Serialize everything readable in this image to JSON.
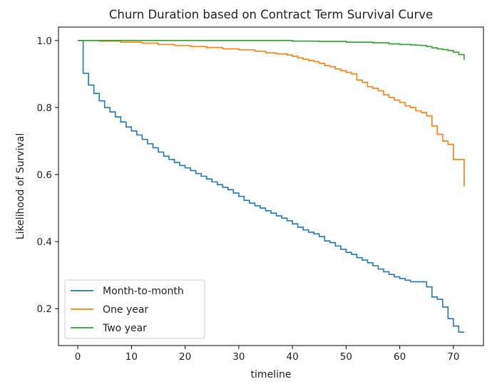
{
  "chart_data": {
    "type": "line",
    "step": true,
    "title": "Churn Duration based on Contract Term Survival Curve",
    "xlabel": "timeline",
    "ylabel": "Likelihood of Survival",
    "xlim": [
      -3.6,
      75.6
    ],
    "ylim": [
      0.09,
      1.04
    ],
    "xticks": [
      0,
      10,
      20,
      30,
      40,
      50,
      60,
      70
    ],
    "yticks": [
      0.2,
      0.4,
      0.6,
      0.8,
      1.0
    ],
    "ytick_labels": [
      "0.2",
      "0.4",
      "0.6",
      "0.8",
      "1.0"
    ],
    "grid": false,
    "legend_position": "lower-left",
    "series": [
      {
        "name": "Month-to-month",
        "color": "#1f77b4",
        "x": [
          0,
          1,
          2,
          3,
          4,
          5,
          6,
          7,
          8,
          9,
          10,
          11,
          12,
          13,
          14,
          15,
          16,
          17,
          18,
          19,
          20,
          21,
          22,
          23,
          24,
          25,
          26,
          27,
          28,
          29,
          30,
          31,
          32,
          33,
          34,
          35,
          36,
          37,
          38,
          39,
          40,
          41,
          42,
          43,
          44,
          45,
          46,
          47,
          48,
          49,
          50,
          51,
          52,
          53,
          54,
          55,
          56,
          57,
          58,
          59,
          60,
          61,
          62,
          63,
          64,
          65,
          66,
          67,
          68,
          69,
          70,
          71,
          72
        ],
        "y": [
          1.0,
          0.902,
          0.867,
          0.842,
          0.82,
          0.8,
          0.787,
          0.772,
          0.757,
          0.742,
          0.73,
          0.718,
          0.705,
          0.692,
          0.68,
          0.667,
          0.655,
          0.645,
          0.636,
          0.627,
          0.62,
          0.612,
          0.603,
          0.595,
          0.587,
          0.578,
          0.57,
          0.562,
          0.555,
          0.545,
          0.535,
          0.523,
          0.515,
          0.507,
          0.5,
          0.492,
          0.485,
          0.477,
          0.47,
          0.462,
          0.453,
          0.443,
          0.435,
          0.428,
          0.423,
          0.415,
          0.402,
          0.397,
          0.387,
          0.377,
          0.368,
          0.362,
          0.352,
          0.345,
          0.337,
          0.328,
          0.318,
          0.31,
          0.302,
          0.295,
          0.29,
          0.285,
          0.28,
          0.28,
          0.28,
          0.265,
          0.235,
          0.228,
          0.205,
          0.17,
          0.148,
          0.13,
          0.13
        ]
      },
      {
        "name": "One year",
        "color": "#ff7f0e",
        "x": [
          0,
          4,
          8,
          12,
          15,
          18,
          21,
          24,
          27,
          30,
          33,
          35,
          37,
          39,
          40,
          41,
          42,
          43,
          44,
          45,
          46,
          47,
          48,
          49,
          50,
          51,
          52,
          53,
          54,
          55,
          56,
          57,
          58,
          59,
          60,
          61,
          62,
          63,
          64,
          65,
          66,
          67,
          68,
          69,
          70,
          71,
          72
        ],
        "y": [
          1.0,
          0.998,
          0.995,
          0.992,
          0.988,
          0.985,
          0.982,
          0.979,
          0.975,
          0.972,
          0.968,
          0.963,
          0.96,
          0.957,
          0.953,
          0.948,
          0.944,
          0.94,
          0.937,
          0.932,
          0.925,
          0.922,
          0.915,
          0.91,
          0.905,
          0.9,
          0.882,
          0.875,
          0.862,
          0.857,
          0.85,
          0.838,
          0.83,
          0.822,
          0.815,
          0.805,
          0.8,
          0.79,
          0.785,
          0.775,
          0.745,
          0.72,
          0.7,
          0.69,
          0.645,
          0.645,
          0.565
        ]
      },
      {
        "name": "Two year",
        "color": "#2ca02c",
        "x": [
          0,
          10,
          20,
          30,
          40,
          45,
          50,
          55,
          58,
          60,
          62,
          63,
          64,
          65,
          66,
          67,
          68,
          69,
          70,
          71,
          72
        ],
        "y": [
          1.0,
          1.0,
          1.0,
          1.0,
          0.998,
          0.997,
          0.995,
          0.993,
          0.99,
          0.988,
          0.987,
          0.986,
          0.985,
          0.982,
          0.978,
          0.975,
          0.973,
          0.97,
          0.965,
          0.958,
          0.942
        ]
      }
    ]
  }
}
